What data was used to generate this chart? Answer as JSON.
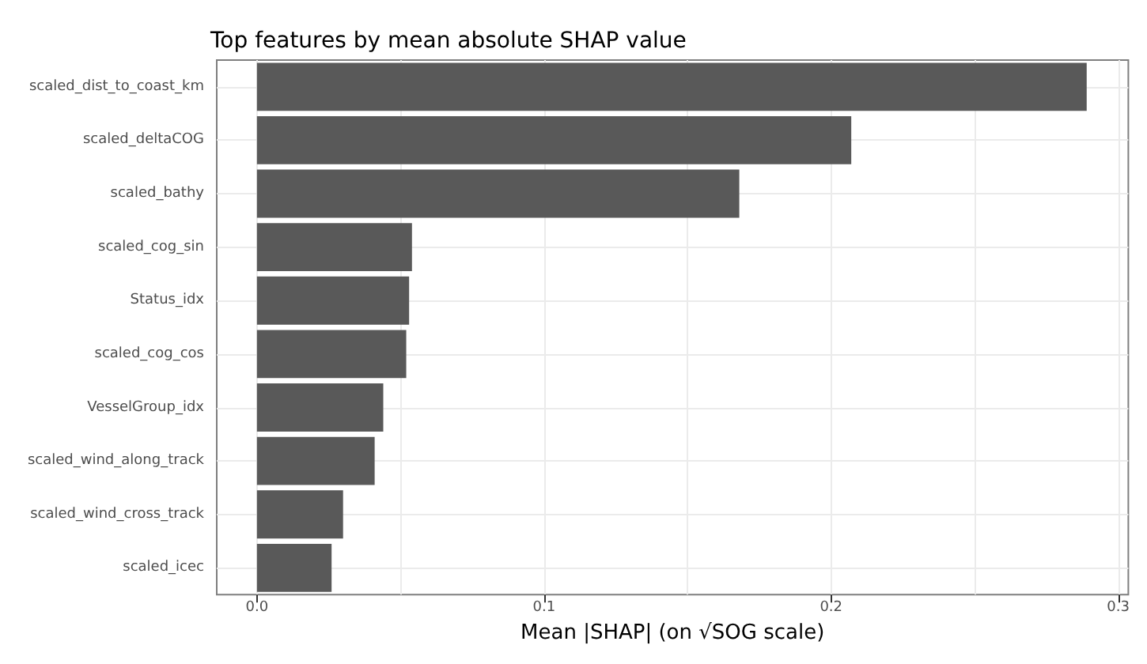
{
  "chart_data": {
    "type": "bar",
    "orientation": "horizontal",
    "title": "Top features by mean absolute SHAP value",
    "xlabel": "Mean |SHAP| (on √SOG scale)",
    "categories": [
      "scaled_dist_to_coast_km",
      "scaled_deltaCOG",
      "scaled_bathy",
      "scaled_cog_sin",
      "Status_idx",
      "scaled_cog_cos",
      "VesselGroup_idx",
      "scaled_wind_along_track",
      "scaled_wind_cross_track",
      "scaled_icec"
    ],
    "values": [
      0.289,
      0.207,
      0.168,
      0.054,
      0.053,
      0.052,
      0.044,
      0.041,
      0.03,
      0.026
    ],
    "color": "#595959",
    "xlim": [
      -0.014,
      0.3035
    ],
    "xticks": [
      {
        "value": 0,
        "label": "0.0"
      },
      {
        "value": 0.05,
        "label": null
      },
      {
        "value": 0.1,
        "label": "0.1"
      },
      {
        "value": 0.15,
        "label": null
      },
      {
        "value": 0.2,
        "label": "0.2"
      },
      {
        "value": 0.25,
        "label": null
      },
      {
        "value": 0.3,
        "label": "0.3"
      }
    ],
    "grid": true
  }
}
